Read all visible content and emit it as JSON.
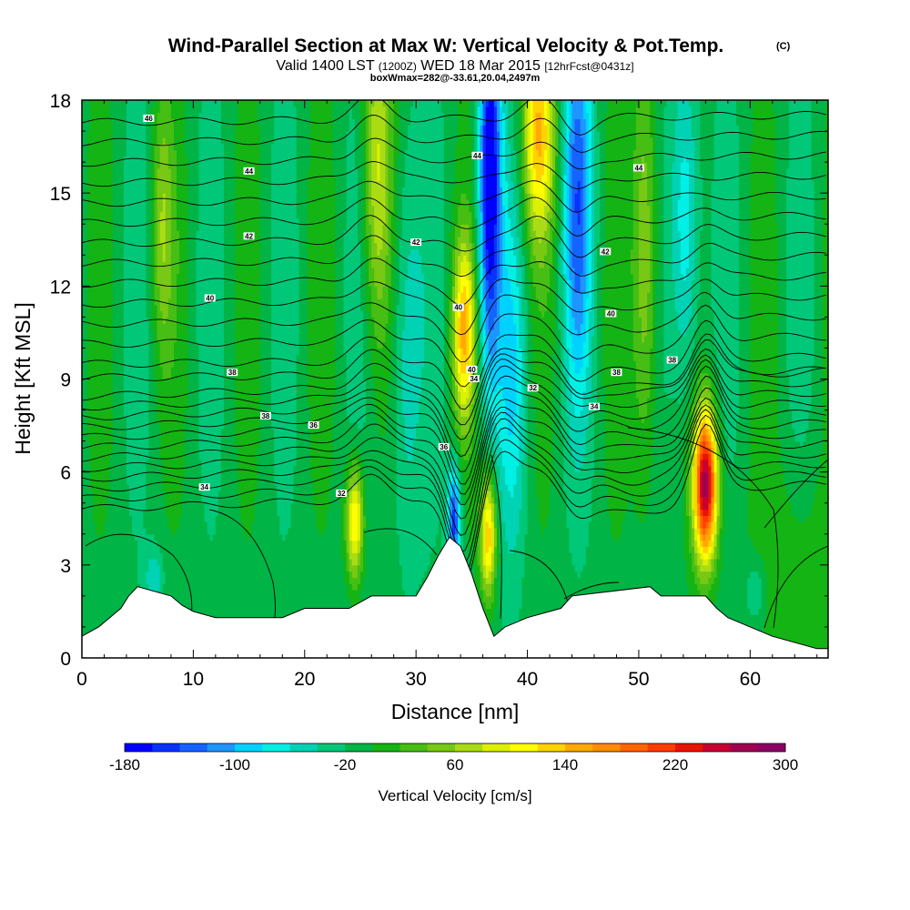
{
  "chart_data": {
    "type": "heatmap",
    "title": "Wind-Parallel Section at Max W: Vertical Velocity & Pot.Temp.",
    "title_suffix": "(C)",
    "subtitle_valid": "Valid 1400 LST",
    "subtitle_utc": "(1200Z)",
    "subtitle_date": "WED 18 Mar 2015",
    "subtitle_fcst": "[12hrFcst@0431z]",
    "subtitle_box": "boxWmax=282@-33.61,20.04,2497m",
    "xlabel": "Distance [nm]",
    "ylabel": "Height [Kft MSL]",
    "xlim": [
      0,
      67
    ],
    "ylim": [
      0,
      18
    ],
    "xticks": [
      "0",
      "10",
      "20",
      "30",
      "40",
      "50",
      "60"
    ],
    "yticks": [
      "0",
      "3",
      "6",
      "9",
      "12",
      "15",
      "18"
    ],
    "colorbar": {
      "label": "Vertical Velocity [cm/s]",
      "ticks": [
        "-180",
        "-100",
        "-20",
        "60",
        "140",
        "220",
        "300"
      ],
      "range": [
        -180,
        300
      ],
      "colors": [
        "#0000ff",
        "#0a32ff",
        "#1464ff",
        "#1e96ff",
        "#00d2ff",
        "#00f0e6",
        "#00d2b4",
        "#00c878",
        "#00b446",
        "#14b414",
        "#46be14",
        "#78c814",
        "#aadc14",
        "#dcf000",
        "#ffff00",
        "#ffd200",
        "#ffaa00",
        "#ff8c00",
        "#ff6400",
        "#ff3c00",
        "#e61400",
        "#c80032",
        "#a00050",
        "#8c0064"
      ]
    },
    "contour_labels": [
      "46",
      "44",
      "44",
      "44",
      "42",
      "42",
      "42",
      "40",
      "40",
      "40",
      "40",
      "38",
      "38",
      "38",
      "38",
      "36",
      "36",
      "34",
      "34",
      "32",
      "32",
      "34"
    ],
    "vertical_velocity_features_cm_s": [
      {
        "x_nm": 56,
        "peak": 282
      },
      {
        "x_nm": 24.5,
        "peak": 140
      },
      {
        "x_nm": 36.5,
        "peak": 150
      },
      {
        "x_nm": 34.5,
        "peak": 140
      },
      {
        "x_nm": 41,
        "peak": 140
      },
      {
        "x_nm": 26.5,
        "peak": 90
      },
      {
        "x_nm": 50.5,
        "peak": 90
      },
      {
        "x_nm": 36.5,
        "peak": -180
      },
      {
        "x_nm": 33.5,
        "peak": -140
      },
      {
        "x_nm": 44.5,
        "peak": -110
      },
      {
        "x_nm": 54,
        "peak": -80
      },
      {
        "x_nm": 38.5,
        "peak": -60
      },
      {
        "x_nm": 29,
        "peak": -50
      }
    ],
    "terrain_kft": [
      [
        0,
        0.7
      ],
      [
        1.5,
        1.0
      ],
      [
        2.5,
        1.3
      ],
      [
        3.5,
        1.6
      ],
      [
        4.2,
        2.0
      ],
      [
        5,
        2.3
      ],
      [
        8,
        2.0
      ],
      [
        9,
        1.7
      ],
      [
        10,
        1.5
      ],
      [
        12,
        1.3
      ],
      [
        18,
        1.3
      ],
      [
        20,
        1.6
      ],
      [
        24,
        1.6
      ],
      [
        26,
        2.0
      ],
      [
        30,
        2.0
      ],
      [
        31,
        2.6
      ],
      [
        32,
        3.3
      ],
      [
        33,
        3.9
      ],
      [
        34,
        3.6
      ],
      [
        35,
        2.7
      ],
      [
        36,
        1.6
      ],
      [
        37,
        0.7
      ],
      [
        38,
        1.0
      ],
      [
        40,
        1.3
      ],
      [
        43,
        1.6
      ],
      [
        44,
        2.0
      ],
      [
        51,
        2.3
      ],
      [
        52,
        2.0
      ],
      [
        56,
        2.0
      ],
      [
        57,
        1.6
      ],
      [
        58,
        1.3
      ],
      [
        60,
        1.0
      ],
      [
        62,
        0.7
      ],
      [
        66,
        0.3
      ],
      [
        67,
        0.3
      ]
    ]
  }
}
